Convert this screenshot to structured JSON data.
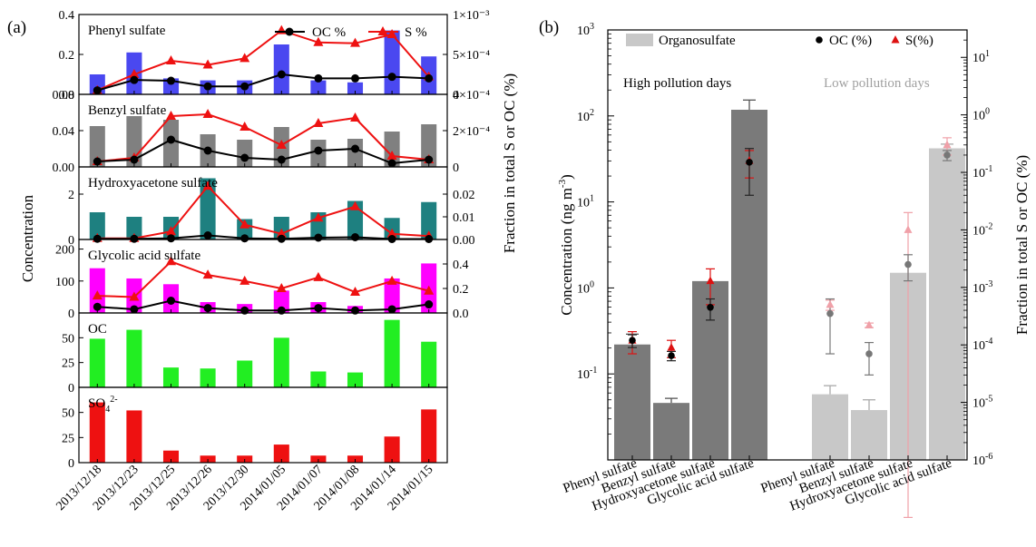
{
  "chart_data": [
    {
      "panel_label": "(a)",
      "type": "bar",
      "categories": [
        "2013/12/18",
        "2013/12/23",
        "2013/12/25",
        "2013/12/26",
        "2013/12/30",
        "2014/01/05",
        "2014/01/07",
        "2014/01/08",
        "2014/01/14",
        "2014/01/15"
      ],
      "ylabel": "Concentration",
      "y2label": "Fraction in total S or OC (%)",
      "legend": [
        "OC %",
        "S %"
      ],
      "subplots": [
        {
          "name": "Phenyl sulfate",
          "color": "#4a48f0",
          "ylim": [
            0,
            0.4
          ],
          "yticks": [
            0,
            0.2,
            0.4
          ],
          "ytick_labels": [
            "0.0",
            "0.2",
            "0.4"
          ],
          "values": [
            0.1,
            0.21,
            0.08,
            0.07,
            0.07,
            0.25,
            0.07,
            0.06,
            0.32,
            0.19
          ],
          "y2lim": [
            0,
            0.001
          ],
          "y2ticks": [
            0,
            0.0005,
            0.001
          ],
          "y2tick_labels": [
            "0",
            "5×10⁻⁴",
            "1×10⁻³"
          ],
          "oc": [
            5e-05,
            0.00018,
            0.00017,
            0.0001,
            0.0001,
            0.00025,
            0.0002,
            0.0002,
            0.00022,
            0.0002
          ],
          "s": [
            5e-05,
            0.00025,
            0.00042,
            0.00037,
            0.00045,
            0.0008,
            0.00065,
            0.00064,
            0.00075,
            0.00022
          ]
        },
        {
          "name": "Benzyl sulfate",
          "color": "#808080",
          "ylim": [
            0,
            0.08
          ],
          "yticks": [
            0,
            0.04,
            0.08
          ],
          "ytick_labels": [
            "0.00",
            "0.04",
            "0.08"
          ],
          "values": [
            0.045,
            0.056,
            0.052,
            0.036,
            0.03,
            0.044,
            0.03,
            0.031,
            0.039,
            0.047
          ],
          "y2lim": [
            0,
            0.0004
          ],
          "y2ticks": [
            0,
            0.0002,
            0.0004
          ],
          "y2tick_labels": [
            "0",
            "2×10⁻⁴",
            "4×10⁻⁴"
          ],
          "oc": [
            3e-05,
            4e-05,
            0.00015,
            9e-05,
            5e-05,
            4e-05,
            9e-05,
            0.0001,
            2e-05,
            4e-05
          ],
          "s": [
            3e-05,
            5e-05,
            0.00028,
            0.00029,
            0.00022,
            0.00012,
            0.00024,
            0.00027,
            6e-05,
            4e-05
          ]
        },
        {
          "name": "Hydroxyacetone sulfate",
          "color": "#1e8080",
          "ylim": [
            0,
            3.2
          ],
          "yticks": [
            0,
            2
          ],
          "ytick_labels": [
            "0",
            "2"
          ],
          "values": [
            1.2,
            1.0,
            1.0,
            2.7,
            0.9,
            1.0,
            1.2,
            1.7,
            0.95,
            1.65
          ],
          "y2lim": [
            0,
            0.032
          ],
          "y2ticks": [
            0,
            0.01,
            0.02
          ],
          "y2tick_labels": [
            "0.00",
            "0.01",
            "0.02"
          ],
          "oc": [
            0.0003,
            0.0003,
            0.0005,
            0.0018,
            0.0005,
            0.0003,
            0.0008,
            0.001,
            0.0002,
            0.0002
          ],
          "s": [
            0.0005,
            0.0005,
            0.0035,
            0.0235,
            0.0065,
            0.0025,
            0.0095,
            0.0145,
            0.0025,
            0.0015
          ]
        },
        {
          "name": "Glycolic acid sulfate",
          "color": "#ff00ff",
          "ylim": [
            0,
            230
          ],
          "yticks": [
            0,
            100,
            200
          ],
          "ytick_labels": [
            "0",
            "100",
            "200"
          ],
          "values": [
            140,
            108,
            90,
            34,
            28,
            70,
            34,
            22,
            108,
            155
          ],
          "y2lim": [
            0,
            0.6
          ],
          "y2ticks": [
            0,
            0.2,
            0.4
          ],
          "y2tick_labels": [
            "0.0",
            "0.2",
            "0.4"
          ],
          "oc": [
            0.05,
            0.03,
            0.1,
            0.04,
            0.02,
            0.02,
            0.04,
            0.02,
            0.03,
            0.07
          ],
          "s": [
            0.14,
            0.13,
            0.42,
            0.31,
            0.26,
            0.2,
            0.29,
            0.17,
            0.26,
            0.18
          ]
        },
        {
          "name": "OC",
          "color": "#22ee22",
          "ylim": [
            0,
            75
          ],
          "yticks": [
            0,
            25,
            50
          ],
          "ytick_labels": [
            "0",
            "25",
            "50"
          ],
          "values": [
            49,
            58,
            20,
            19,
            27,
            50,
            16,
            15,
            68,
            46
          ]
        },
        {
          "name": "SO₄²⁻",
          "name_main": "SO",
          "name_sub": "4",
          "name_sup": "2-",
          "color": "#ee1111",
          "ylim": [
            0,
            75
          ],
          "yticks": [
            0,
            25,
            50
          ],
          "ytick_labels": [
            "0",
            "25",
            "50"
          ],
          "values": [
            60,
            52,
            12,
            7,
            7,
            18,
            7,
            7,
            26,
            53
          ]
        }
      ]
    },
    {
      "panel_label": "(b)",
      "type": "bar",
      "yscale": "log",
      "ylabel": "Concentration (ng m⁻³)",
      "ylabel_main": "Concentration (ng m",
      "ylabel_sup": "-3",
      "ylabel_end": ")",
      "y2label": "Fraction in total S or OC (%)",
      "ylim": [
        0.01,
        1000
      ],
      "y2lim": [
        1e-06,
        30
      ],
      "yticks_exp": [
        -1,
        0,
        1,
        2,
        3
      ],
      "y2ticks_exp": [
        -6,
        -5,
        -4,
        -3,
        -2,
        -1,
        0,
        1
      ],
      "legend": [
        "Organosulfate",
        "OC (%)",
        "S(%)"
      ],
      "group_labels": [
        "High pollution days",
        "Low pollution days"
      ],
      "categories": [
        "Phenyl sulfate",
        "Benzyl sulfate",
        "Hydroxyacetone sulfate",
        "Glycolic acid sulfate",
        "Phenyl sulfate",
        "Benzyl sulfate",
        "Hydroxyacetone sulfate",
        "Glycolic acid sulfate"
      ],
      "bar_colors": [
        "#7a7a7a",
        "#7a7a7a",
        "#7a7a7a",
        "#7a7a7a",
        "#c8c8c8",
        "#c8c8c8",
        "#c8c8c8",
        "#c8c8c8"
      ],
      "values": [
        0.22,
        0.046,
        1.2,
        118,
        0.058,
        0.038,
        1.5,
        42
      ],
      "errors": [
        0.07,
        0.006,
        0.0,
        35,
        0.015,
        0.012,
        0.0,
        5
      ],
      "oc": [
        0.00012,
        6.5e-05,
        0.00045,
        0.15,
        0.00035,
        7e-05,
        0.0025,
        0.2
      ],
      "oc_err": [
        3e-05,
        1.2e-05,
        0.00018,
        0.11,
        0.00028,
        4e-05,
        0.0012,
        0.04
      ],
      "s": [
        0.00012,
        9e-05,
        0.0013,
        0.16,
        0.0005,
        0.00022,
        0.01,
        0.3
      ],
      "s_err": [
        5e-05,
        3e-05,
        0.0008,
        0.08,
        0.0001,
        2e-05,
        0.01,
        0.1
      ]
    }
  ]
}
